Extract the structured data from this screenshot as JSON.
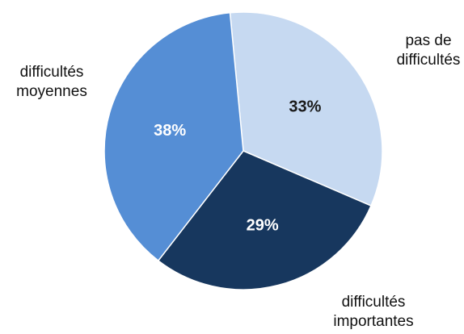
{
  "chart_data": {
    "type": "pie",
    "title": "",
    "start_angle_deg": -5.5,
    "direction": "clockwise",
    "slices": [
      {
        "label_lines": [
          "pas de",
          "difficultés"
        ],
        "value": 33,
        "value_label": "33%",
        "color": "#c6d9f1",
        "value_label_color": "#1a1a1a"
      },
      {
        "label_lines": [
          "difficultés",
          "importantes"
        ],
        "value": 29,
        "value_label": "29%",
        "color": "#17375e",
        "value_label_color": "#ffffff"
      },
      {
        "label_lines": [
          "difficultés",
          "moyennes"
        ],
        "value": 38,
        "value_label": "38%",
        "color": "#558ed5",
        "value_label_color": "#ffffff"
      }
    ]
  }
}
